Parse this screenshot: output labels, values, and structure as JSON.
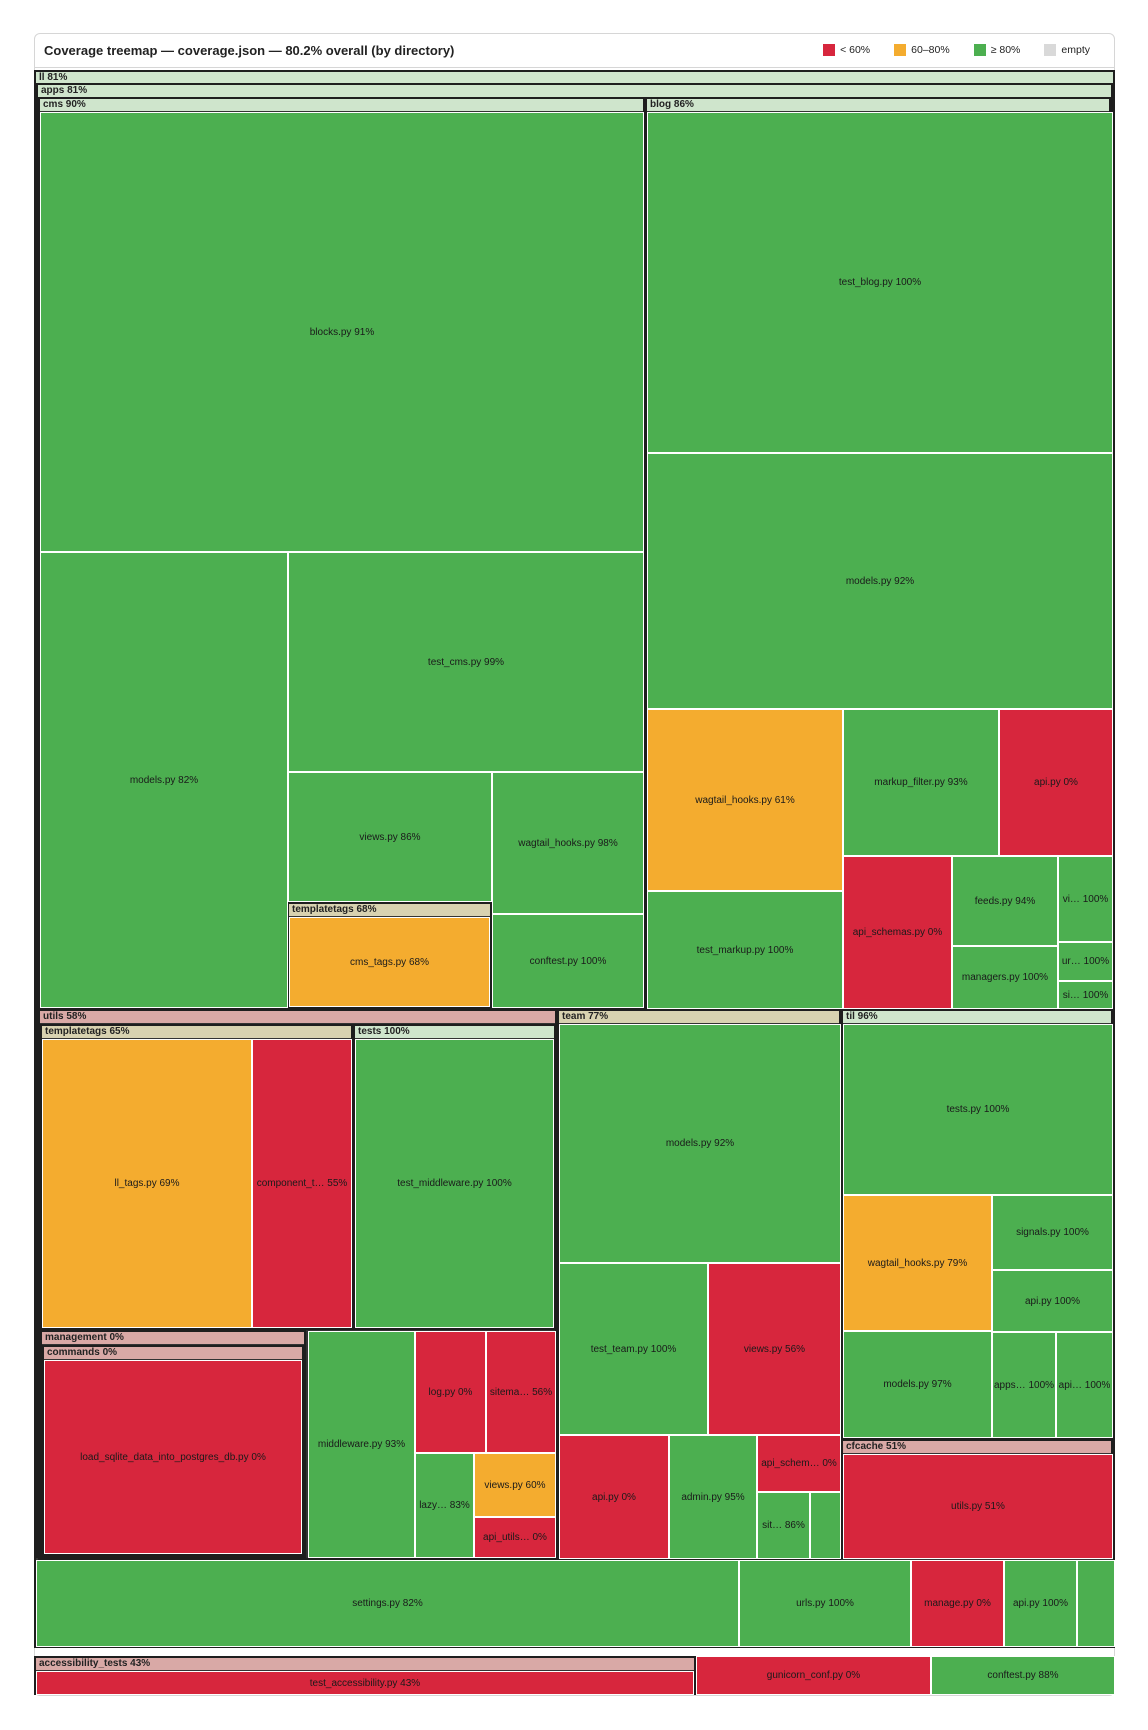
{
  "header": {
    "title": "Coverage treemap — coverage.json — 80.2% overall (by directory)",
    "legend": [
      {
        "label": "< 60%",
        "color": "#d7263d"
      },
      {
        "label": "60–80%",
        "color": "#f4ac2f"
      },
      {
        "label": "≥ 80%",
        "color": "#4caf50"
      },
      {
        "label": "empty",
        "color": "#d9d9d9"
      }
    ]
  },
  "colors": {
    "low": "#d7263d",
    "mid": "#f4ac2f",
    "high": "#4caf50",
    "frame": "#333333"
  },
  "chart_data": {
    "type": "treemap",
    "title": "Coverage treemap — coverage.json — 80.2% overall (by directory)",
    "root": "ll 81%",
    "nodes": [
      {
        "id": "ll",
        "label": "ll 81%",
        "coverage": 81,
        "children": [
          {
            "id": "apps",
            "label": "apps 81%",
            "coverage": 81,
            "children": [
              {
                "id": "cms",
                "label": "cms 90%",
                "coverage": 90,
                "children": [
                  {
                    "label": "blocks.py 91%",
                    "coverage": 91
                  },
                  {
                    "label": "models.py 82%",
                    "coverage": 82
                  },
                  {
                    "label": "test_cms.py 99%",
                    "coverage": 99
                  },
                  {
                    "label": "views.py 86%",
                    "coverage": 86
                  },
                  {
                    "label": "wagtail_hooks.py 98%",
                    "coverage": 98
                  },
                  {
                    "id": "cms_templatetags",
                    "label": "templatetags 68%",
                    "coverage": 68,
                    "children": [
                      {
                        "label": "cms_tags.py 68%",
                        "coverage": 68
                      }
                    ]
                  },
                  {
                    "label": "conftest.py 100%",
                    "coverage": 100
                  }
                ]
              },
              {
                "id": "blog",
                "label": "blog 86%",
                "coverage": 86,
                "children": [
                  {
                    "label": "test_blog.py 100%",
                    "coverage": 100
                  },
                  {
                    "label": "models.py 92%",
                    "coverage": 92
                  },
                  {
                    "label": "wagtail_hooks.py 61%",
                    "coverage": 61
                  },
                  {
                    "label": "markup_filter.py 93%",
                    "coverage": 93
                  },
                  {
                    "label": "api.py 0%",
                    "coverage": 0
                  },
                  {
                    "label": "test_markup.py 100%",
                    "coverage": 100
                  },
                  {
                    "label": "api_schemas.py 0%",
                    "coverage": 0
                  },
                  {
                    "label": "feeds.py 94%",
                    "coverage": 94
                  },
                  {
                    "label": "vi… 100%",
                    "coverage": 100
                  },
                  {
                    "label": "managers.py 100%",
                    "coverage": 100
                  },
                  {
                    "label": "ur… 100%",
                    "coverage": 100
                  },
                  {
                    "label": "si… 100%",
                    "coverage": 100
                  }
                ]
              },
              {
                "id": "utils",
                "label": "utils 58%",
                "coverage": 58,
                "children": [
                  {
                    "id": "utils_templatetags",
                    "label": "templatetags 65%",
                    "coverage": 65,
                    "children": [
                      {
                        "label": "ll_tags.py 69%",
                        "coverage": 69
                      },
                      {
                        "label": "component_t… 55%",
                        "coverage": 55
                      }
                    ]
                  },
                  {
                    "id": "utils_tests",
                    "label": "tests 100%",
                    "coverage": 100,
                    "children": [
                      {
                        "label": "test_middleware.py 100%",
                        "coverage": 100
                      }
                    ]
                  },
                  {
                    "id": "management",
                    "label": "management 0%",
                    "coverage": 0,
                    "children": [
                      {
                        "id": "commands",
                        "label": "commands 0%",
                        "coverage": 0,
                        "children": [
                          {
                            "label": "load_sqlite_data_into_postgres_db.py 0%",
                            "coverage": 0
                          }
                        ]
                      }
                    ]
                  },
                  {
                    "label": "middleware.py 93%",
                    "coverage": 93
                  },
                  {
                    "label": "log.py 0%",
                    "coverage": 0
                  },
                  {
                    "label": "sitema… 56%",
                    "coverage": 56
                  },
                  {
                    "label": "lazy… 83%",
                    "coverage": 83
                  },
                  {
                    "label": "views.py 60%",
                    "coverage": 60
                  },
                  {
                    "label": "api_utils… 0%",
                    "coverage": 0
                  }
                ]
              },
              {
                "id": "team",
                "label": "team 77%",
                "coverage": 77,
                "children": [
                  {
                    "label": "models.py 92%",
                    "coverage": 92
                  },
                  {
                    "label": "test_team.py 100%",
                    "coverage": 100
                  },
                  {
                    "label": "views.py 56%",
                    "coverage": 56
                  },
                  {
                    "label": "api.py 0%",
                    "coverage": 0
                  },
                  {
                    "label": "admin.py 95%",
                    "coverage": 95
                  },
                  {
                    "label": "api_schem… 0%",
                    "coverage": 0
                  },
                  {
                    "label": "sit… 86%",
                    "coverage": 86
                  },
                  {
                    "label": "",
                    "coverage": 100
                  }
                ]
              },
              {
                "id": "til",
                "label": "til 96%",
                "coverage": 96,
                "children": [
                  {
                    "label": "tests.py 100%",
                    "coverage": 100
                  },
                  {
                    "label": "wagtail_hooks.py 79%",
                    "coverage": 79
                  },
                  {
                    "label": "signals.py 100%",
                    "coverage": 100
                  },
                  {
                    "label": "api.py 100%",
                    "coverage": 100
                  },
                  {
                    "label": "models.py 97%",
                    "coverage": 97
                  },
                  {
                    "label": "apps… 100%",
                    "coverage": 100
                  },
                  {
                    "label": "api… 100%",
                    "coverage": 100
                  }
                ]
              },
              {
                "id": "cfcache",
                "label": "cfcache 51%",
                "coverage": 51,
                "children": [
                  {
                    "label": "utils.py 51%",
                    "coverage": 51
                  }
                ]
              }
            ]
          },
          {
            "label": "settings.py 82%",
            "coverage": 82
          },
          {
            "label": "urls.py 100%",
            "coverage": 100
          },
          {
            "label": "manage.py 0%",
            "coverage": 0
          },
          {
            "label": "api.py 100%",
            "coverage": 100
          },
          {
            "label": "",
            "coverage": 100
          }
        ]
      },
      {
        "id": "accessibility_tests",
        "label": "accessibility_tests 43%",
        "coverage": 43,
        "children": [
          {
            "label": "test_accessibility.py 43%",
            "coverage": 43
          }
        ]
      },
      {
        "label": "gunicorn_conf.py 0%",
        "coverage": 0
      },
      {
        "label": "conftest.py 88%",
        "coverage": 88
      }
    ]
  }
}
